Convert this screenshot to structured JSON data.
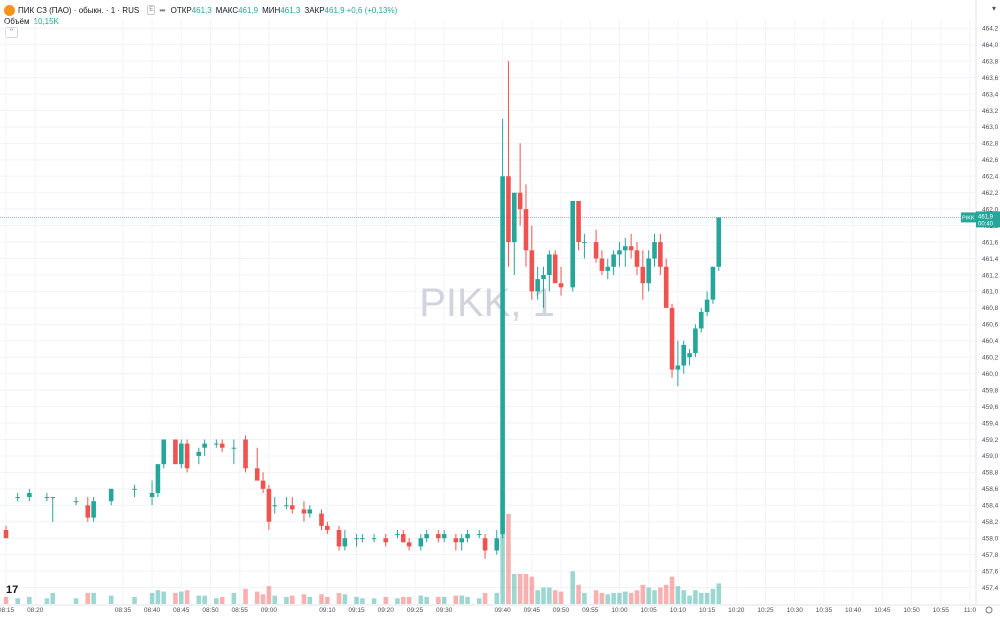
{
  "legend": {
    "logo": "circle-logo",
    "symbol": "ПИК СЗ (ПАО) · обыкн. · 1 · RUS",
    "pill": "E",
    "dots": "•••",
    "open_label": "ОТКР",
    "open": "461,3",
    "high_label": "МАКС",
    "high": "461,9",
    "low_label": "МИН",
    "low": "461,3",
    "close_label": "ЗАКР",
    "close": "461,9",
    "change": "+0,6 (+0,13%)"
  },
  "volume_legend": {
    "label": "Объём",
    "value": "10,15K"
  },
  "collapse_glyph": "^",
  "tv_logo": "17",
  "chart_data": {
    "type": "candlestick",
    "symbol": "PIKK",
    "interval": "1",
    "watermark": "PIKK, 1",
    "price_label": {
      "ticker": "PIKK",
      "price": "461,9",
      "countdown": "00:40",
      "value": 461.9
    },
    "ylim": [
      457.2,
      464.3
    ],
    "y_ticks": [
      457.4,
      457.6,
      457.8,
      458.0,
      458.2,
      458.4,
      458.6,
      458.8,
      459.0,
      459.2,
      459.4,
      459.6,
      459.8,
      460.0,
      460.2,
      460.4,
      460.6,
      460.8,
      461.0,
      461.2,
      461.4,
      461.6,
      461.8,
      462.0,
      462.2,
      462.4,
      462.6,
      462.8,
      463.0,
      463.2,
      463.4,
      463.6,
      463.8,
      464.0,
      464.2
    ],
    "x_ticks": [
      "08:15",
      "08:20",
      "08:35",
      "08:40",
      "08:45",
      "08:50",
      "08:55",
      "09:00",
      "09:10",
      "09:15",
      "09:20",
      "09:25",
      "09:30",
      "09:40",
      "09:45",
      "09:50",
      "09:55",
      "10:00",
      "10:05",
      "10:10",
      "10:15",
      "10:20",
      "10:25",
      "10:30",
      "10:35",
      "10:40",
      "10:45",
      "10:50",
      "10:55",
      "11:0"
    ],
    "x_tick_minutes": [
      495,
      500,
      515,
      520,
      525,
      530,
      535,
      540,
      550,
      555,
      560,
      565,
      570,
      580,
      585,
      590,
      595,
      600,
      605,
      610,
      615,
      620,
      625,
      630,
      635,
      640,
      645,
      650,
      655,
      660
    ],
    "candles": [
      [
        495,
        458.1,
        458.15,
        458.0,
        458.0
      ],
      [
        497,
        458.5,
        458.55,
        458.45,
        458.5
      ],
      [
        499,
        458.5,
        458.6,
        458.45,
        458.55
      ],
      [
        502,
        458.5,
        458.55,
        458.45,
        458.5
      ],
      [
        503,
        458.5,
        458.5,
        458.2,
        458.5
      ],
      [
        507,
        458.45,
        458.5,
        458.4,
        458.45
      ],
      [
        509,
        458.4,
        458.5,
        458.2,
        458.25
      ],
      [
        510,
        458.25,
        458.5,
        458.2,
        458.45
      ],
      [
        513,
        458.45,
        458.6,
        458.4,
        458.6
      ],
      [
        517,
        458.6,
        458.65,
        458.5,
        458.6
      ],
      [
        520,
        458.5,
        458.7,
        458.4,
        458.55
      ],
      [
        521,
        458.55,
        458.9,
        458.5,
        458.9
      ],
      [
        522,
        458.9,
        459.2,
        458.85,
        459.2
      ],
      [
        524,
        459.2,
        459.2,
        458.9,
        458.9
      ],
      [
        525,
        458.9,
        459.2,
        458.85,
        459.15
      ],
      [
        526,
        459.15,
        459.2,
        458.8,
        458.85
      ],
      [
        528,
        459.0,
        459.1,
        458.9,
        459.05
      ],
      [
        529,
        459.1,
        459.2,
        459.0,
        459.15
      ],
      [
        531,
        459.15,
        459.2,
        459.1,
        459.15
      ],
      [
        532,
        459.15,
        459.2,
        459.05,
        459.1
      ],
      [
        534,
        459.1,
        459.2,
        458.9,
        459.1
      ],
      [
        536,
        459.2,
        459.25,
        458.8,
        458.85
      ],
      [
        538,
        458.85,
        459.1,
        458.75,
        458.7
      ],
      [
        539,
        458.7,
        458.8,
        458.55,
        458.6
      ],
      [
        540,
        458.6,
        458.65,
        458.1,
        458.2
      ],
      [
        541,
        458.4,
        458.5,
        458.3,
        458.4
      ],
      [
        543,
        458.4,
        458.5,
        458.35,
        458.4
      ],
      [
        544,
        458.4,
        458.5,
        458.3,
        458.35
      ],
      [
        546,
        458.35,
        458.45,
        458.2,
        458.3
      ],
      [
        547,
        458.3,
        458.4,
        458.25,
        458.35
      ],
      [
        549,
        458.3,
        458.35,
        458.1,
        458.15
      ],
      [
        550,
        458.15,
        458.2,
        458.05,
        458.1
      ],
      [
        552,
        458.1,
        458.15,
        457.85,
        457.9
      ],
      [
        553,
        457.9,
        458.1,
        457.85,
        458.0
      ],
      [
        555,
        458.0,
        458.05,
        457.9,
        458.0
      ],
      [
        556,
        458.0,
        458.05,
        457.95,
        458.0
      ],
      [
        558,
        458.0,
        458.05,
        457.95,
        458.0
      ],
      [
        560,
        458.0,
        458.05,
        457.9,
        457.95
      ],
      [
        562,
        458.05,
        458.1,
        458.0,
        458.05
      ],
      [
        563,
        458.05,
        458.1,
        457.95,
        457.95
      ],
      [
        564,
        457.95,
        458.0,
        457.85,
        457.9
      ],
      [
        566,
        457.9,
        458.05,
        457.85,
        458.0
      ],
      [
        567,
        458.0,
        458.1,
        457.95,
        458.05
      ],
      [
        569,
        458.05,
        458.1,
        457.95,
        458.0
      ],
      [
        570,
        458.0,
        458.1,
        457.95,
        458.05
      ],
      [
        572,
        458.0,
        458.05,
        457.85,
        457.95
      ],
      [
        573,
        457.95,
        458.05,
        457.85,
        458.0
      ],
      [
        574,
        458.0,
        458.1,
        457.95,
        458.05
      ],
      [
        576,
        458.05,
        458.1,
        458.0,
        458.05
      ],
      [
        577,
        458.0,
        458.05,
        457.75,
        457.85
      ],
      [
        579,
        457.85,
        458.1,
        457.8,
        458.0
      ],
      [
        580,
        458.05,
        463.1,
        458.0,
        462.4
      ],
      [
        581,
        462.4,
        463.8,
        461.3,
        461.6
      ],
      [
        582,
        461.6,
        462.2,
        461.2,
        462.2
      ],
      [
        583,
        462.2,
        462.8,
        461.8,
        462.0
      ],
      [
        584,
        462.0,
        462.3,
        461.3,
        461.5
      ],
      [
        585,
        461.5,
        461.8,
        460.9,
        461.0
      ],
      [
        586,
        461.0,
        461.3,
        460.9,
        461.15
      ],
      [
        587,
        461.15,
        461.3,
        460.8,
        461.2
      ],
      [
        588,
        461.2,
        461.5,
        461.0,
        461.45
      ],
      [
        589,
        461.45,
        461.5,
        461.1,
        461.1
      ],
      [
        590,
        461.1,
        461.3,
        460.95,
        461.05
      ],
      [
        592,
        461.05,
        462.1,
        461.0,
        462.1
      ],
      [
        593,
        462.1,
        462.1,
        461.5,
        461.6
      ],
      [
        594,
        461.6,
        461.7,
        461.4,
        461.6
      ],
      [
        596,
        461.6,
        461.75,
        461.35,
        461.4
      ],
      [
        597,
        461.4,
        461.5,
        461.2,
        461.25
      ],
      [
        598,
        461.25,
        461.4,
        461.15,
        461.3
      ],
      [
        599,
        461.3,
        461.5,
        461.2,
        461.45
      ],
      [
        600,
        461.45,
        461.6,
        461.3,
        461.5
      ],
      [
        601,
        461.5,
        461.65,
        461.3,
        461.55
      ],
      [
        602,
        461.55,
        461.7,
        461.4,
        461.5
      ],
      [
        603,
        461.5,
        461.6,
        461.2,
        461.3
      ],
      [
        604,
        461.3,
        461.5,
        460.9,
        461.1
      ],
      [
        605,
        461.1,
        461.5,
        461.0,
        461.4
      ],
      [
        606,
        461.4,
        461.7,
        461.3,
        461.6
      ],
      [
        607,
        461.6,
        461.7,
        461.2,
        461.3
      ],
      [
        608,
        461.3,
        461.4,
        460.8,
        460.8
      ],
      [
        609,
        460.8,
        460.85,
        459.95,
        460.05
      ],
      [
        610,
        460.05,
        460.4,
        459.85,
        460.1
      ],
      [
        611,
        460.1,
        460.4,
        460.0,
        460.35
      ],
      [
        612,
        460.2,
        460.3,
        460.1,
        460.25
      ],
      [
        613,
        460.25,
        460.6,
        460.2,
        460.55
      ],
      [
        614,
        460.55,
        460.8,
        460.5,
        460.75
      ],
      [
        615,
        460.75,
        461.0,
        460.7,
        460.9
      ],
      [
        616,
        460.9,
        461.3,
        460.85,
        461.3
      ],
      [
        617,
        461.3,
        461.9,
        461.25,
        461.9
      ]
    ],
    "volume_ylim": [
      0,
      4000
    ]
  }
}
